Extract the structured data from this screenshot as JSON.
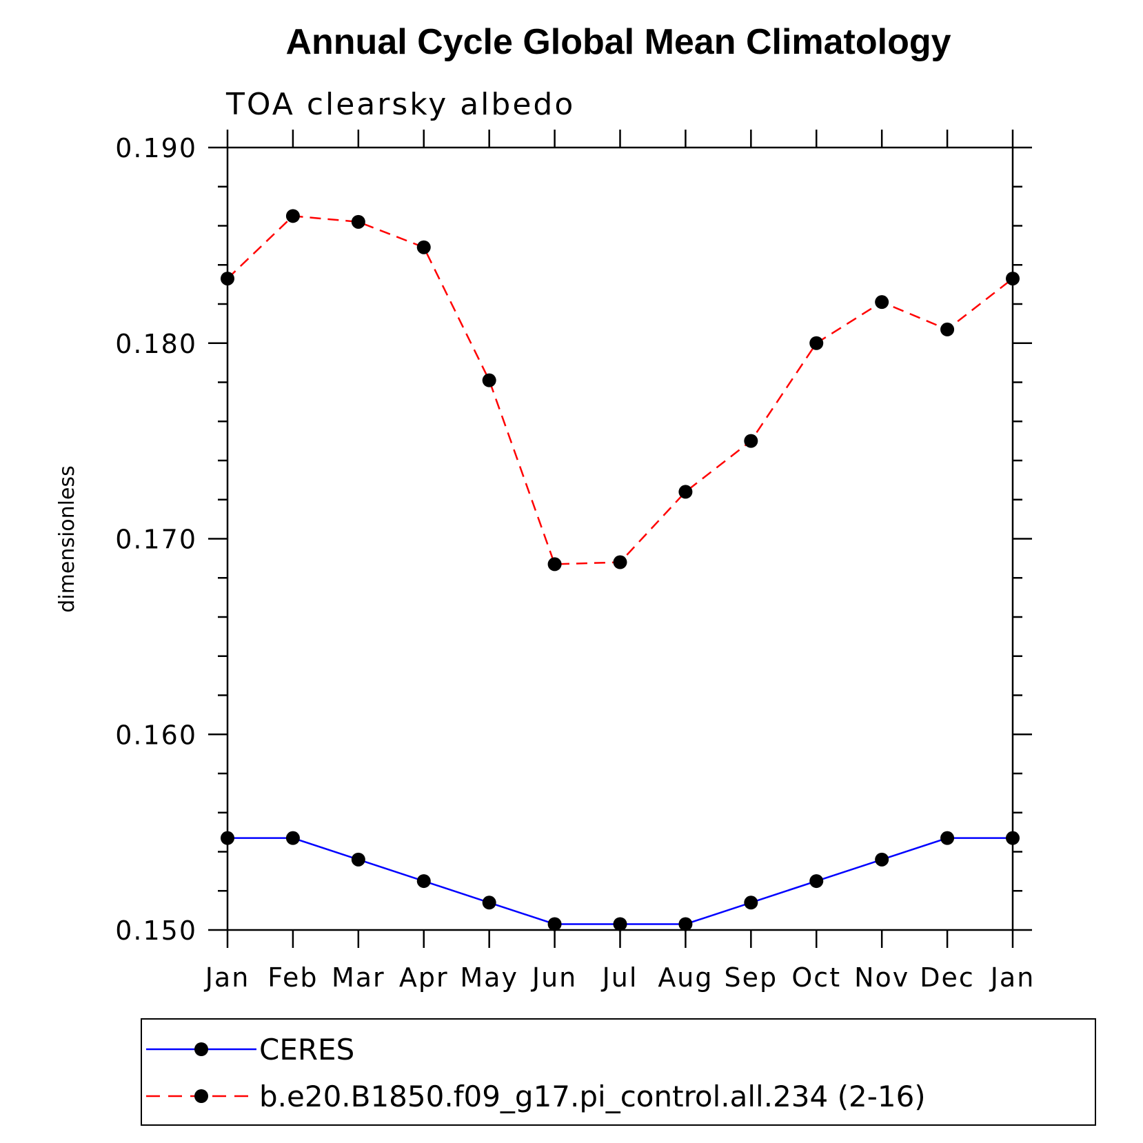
{
  "chart_data": {
    "type": "line",
    "title": "Annual Cycle Global Mean Climatology",
    "subtitle": "TOA clearsky albedo",
    "xlabel": "",
    "ylabel": "dimensionless",
    "categories": [
      "Jan",
      "Feb",
      "Mar",
      "Apr",
      "May",
      "Jun",
      "Jul",
      "Aug",
      "Sep",
      "Oct",
      "Nov",
      "Dec",
      "Jan"
    ],
    "ylim": [
      0.15,
      0.19
    ],
    "yticks": [
      "0.150",
      "0.160",
      "0.170",
      "0.180",
      "0.190"
    ],
    "grid": false,
    "legend_position": "bottom",
    "series": [
      {
        "name": "CERES",
        "color": "#0000ff",
        "style": "solid",
        "values": [
          0.1547,
          0.1547,
          0.1536,
          0.1525,
          0.1514,
          0.1503,
          0.1503,
          0.1503,
          0.1514,
          0.1525,
          0.1536,
          0.1547,
          0.1547
        ]
      },
      {
        "name": "b.e20.B1850.f09_g17.pi_control.all.234 (2-16)",
        "color": "#ff0000",
        "style": "dashed",
        "values": [
          0.1833,
          0.1865,
          0.1862,
          0.1849,
          0.1781,
          0.1687,
          0.1688,
          0.1724,
          0.175,
          0.18,
          0.1821,
          0.1807,
          0.1833
        ]
      }
    ]
  }
}
